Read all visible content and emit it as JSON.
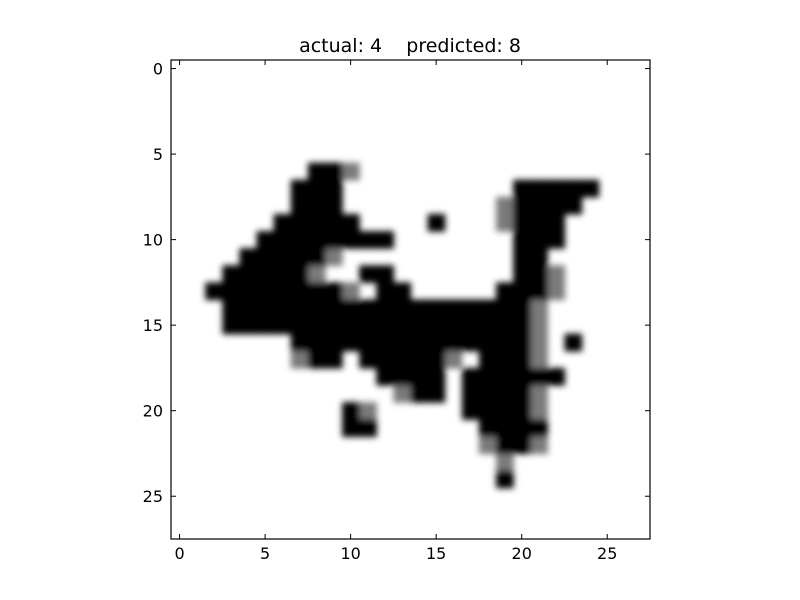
{
  "chart_data": {
    "type": "heatmap",
    "title": "actual: 4    predicted: 8",
    "xlabel": "",
    "ylabel": "",
    "xlim": [
      -0.5,
      27.5
    ],
    "ylim": [
      27.5,
      -0.5
    ],
    "colormap": "gray_r",
    "interpolation": "smooth",
    "grid": false,
    "x_ticks": [
      0,
      5,
      10,
      15,
      20,
      25
    ],
    "y_ticks": [
      0,
      5,
      10,
      15,
      20,
      25
    ],
    "x_tick_labels": [
      "0",
      "5",
      "10",
      "15",
      "20",
      "25"
    ],
    "y_tick_labels": [
      "0",
      "5",
      "10",
      "15",
      "20",
      "25"
    ],
    "image": {
      "rows": 28,
      "cols": 28,
      "value_range": [
        0,
        1
      ],
      "dark_pixels": [
        [
          6,
          8
        ],
        [
          6,
          9
        ],
        [
          7,
          7
        ],
        [
          7,
          8
        ],
        [
          7,
          9
        ],
        [
          7,
          20
        ],
        [
          7,
          21
        ],
        [
          7,
          22
        ],
        [
          7,
          23
        ],
        [
          7,
          24
        ],
        [
          8,
          7
        ],
        [
          8,
          8
        ],
        [
          8,
          9
        ],
        [
          8,
          20
        ],
        [
          8,
          21
        ],
        [
          8,
          22
        ],
        [
          8,
          23
        ],
        [
          9,
          6
        ],
        [
          9,
          7
        ],
        [
          9,
          8
        ],
        [
          9,
          9
        ],
        [
          9,
          10
        ],
        [
          9,
          15
        ],
        [
          9,
          20
        ],
        [
          9,
          21
        ],
        [
          9,
          22
        ],
        [
          10,
          5
        ],
        [
          10,
          6
        ],
        [
          10,
          7
        ],
        [
          10,
          8
        ],
        [
          10,
          9
        ],
        [
          10,
          10
        ],
        [
          10,
          11
        ],
        [
          10,
          12
        ],
        [
          10,
          20
        ],
        [
          10,
          21
        ],
        [
          10,
          22
        ],
        [
          11,
          4
        ],
        [
          11,
          5
        ],
        [
          11,
          6
        ],
        [
          11,
          7
        ],
        [
          11,
          8
        ],
        [
          11,
          20
        ],
        [
          11,
          21
        ],
        [
          12,
          3
        ],
        [
          12,
          4
        ],
        [
          12,
          5
        ],
        [
          12,
          6
        ],
        [
          12,
          7
        ],
        [
          12,
          11
        ],
        [
          12,
          12
        ],
        [
          12,
          20
        ],
        [
          12,
          21
        ],
        [
          13,
          2
        ],
        [
          13,
          3
        ],
        [
          13,
          4
        ],
        [
          13,
          5
        ],
        [
          13,
          6
        ],
        [
          13,
          7
        ],
        [
          13,
          8
        ],
        [
          13,
          9
        ],
        [
          13,
          12
        ],
        [
          13,
          13
        ],
        [
          13,
          19
        ],
        [
          13,
          20
        ],
        [
          13,
          21
        ],
        [
          14,
          3
        ],
        [
          14,
          4
        ],
        [
          14,
          5
        ],
        [
          14,
          6
        ],
        [
          14,
          7
        ],
        [
          14,
          8
        ],
        [
          14,
          9
        ],
        [
          14,
          10
        ],
        [
          14,
          11
        ],
        [
          14,
          12
        ],
        [
          14,
          13
        ],
        [
          14,
          14
        ],
        [
          14,
          15
        ],
        [
          14,
          16
        ],
        [
          14,
          17
        ],
        [
          14,
          18
        ],
        [
          14,
          19
        ],
        [
          14,
          20
        ],
        [
          15,
          3
        ],
        [
          15,
          4
        ],
        [
          15,
          5
        ],
        [
          15,
          6
        ],
        [
          15,
          7
        ],
        [
          15,
          8
        ],
        [
          15,
          9
        ],
        [
          15,
          10
        ],
        [
          15,
          11
        ],
        [
          15,
          12
        ],
        [
          15,
          13
        ],
        [
          15,
          14
        ],
        [
          15,
          15
        ],
        [
          15,
          16
        ],
        [
          15,
          17
        ],
        [
          15,
          18
        ],
        [
          15,
          19
        ],
        [
          15,
          20
        ],
        [
          16,
          7
        ],
        [
          16,
          8
        ],
        [
          16,
          9
        ],
        [
          16,
          10
        ],
        [
          16,
          11
        ],
        [
          16,
          12
        ],
        [
          16,
          13
        ],
        [
          16,
          14
        ],
        [
          16,
          15
        ],
        [
          16,
          16
        ],
        [
          16,
          17
        ],
        [
          16,
          18
        ],
        [
          16,
          19
        ],
        [
          16,
          20
        ],
        [
          16,
          23
        ],
        [
          17,
          8
        ],
        [
          17,
          9
        ],
        [
          17,
          11
        ],
        [
          17,
          12
        ],
        [
          17,
          13
        ],
        [
          17,
          14
        ],
        [
          17,
          15
        ],
        [
          17,
          18
        ],
        [
          17,
          19
        ],
        [
          17,
          20
        ],
        [
          18,
          12
        ],
        [
          18,
          13
        ],
        [
          18,
          14
        ],
        [
          18,
          15
        ],
        [
          18,
          17
        ],
        [
          18,
          18
        ],
        [
          18,
          19
        ],
        [
          18,
          20
        ],
        [
          18,
          21
        ],
        [
          18,
          22
        ],
        [
          19,
          14
        ],
        [
          19,
          15
        ],
        [
          19,
          17
        ],
        [
          19,
          18
        ],
        [
          19,
          19
        ],
        [
          19,
          20
        ],
        [
          20,
          10
        ],
        [
          20,
          17
        ],
        [
          20,
          18
        ],
        [
          20,
          19
        ],
        [
          20,
          20
        ],
        [
          21,
          10
        ],
        [
          21,
          11
        ],
        [
          21,
          18
        ],
        [
          21,
          19
        ],
        [
          21,
          20
        ],
        [
          21,
          21
        ],
        [
          22,
          19
        ],
        [
          22,
          20
        ],
        [
          24,
          19
        ]
      ],
      "gray_pixels": [
        [
          6,
          10
        ],
        [
          8,
          19
        ],
        [
          9,
          19
        ],
        [
          11,
          9
        ],
        [
          12,
          8
        ],
        [
          12,
          22
        ],
        [
          13,
          10
        ],
        [
          13,
          22
        ],
        [
          14,
          21
        ],
        [
          15,
          21
        ],
        [
          16,
          21
        ],
        [
          17,
          7
        ],
        [
          17,
          16
        ],
        [
          17,
          21
        ],
        [
          19,
          13
        ],
        [
          19,
          21
        ],
        [
          20,
          11
        ],
        [
          20,
          21
        ],
        [
          22,
          18
        ],
        [
          22,
          21
        ],
        [
          23,
          19
        ]
      ]
    }
  }
}
